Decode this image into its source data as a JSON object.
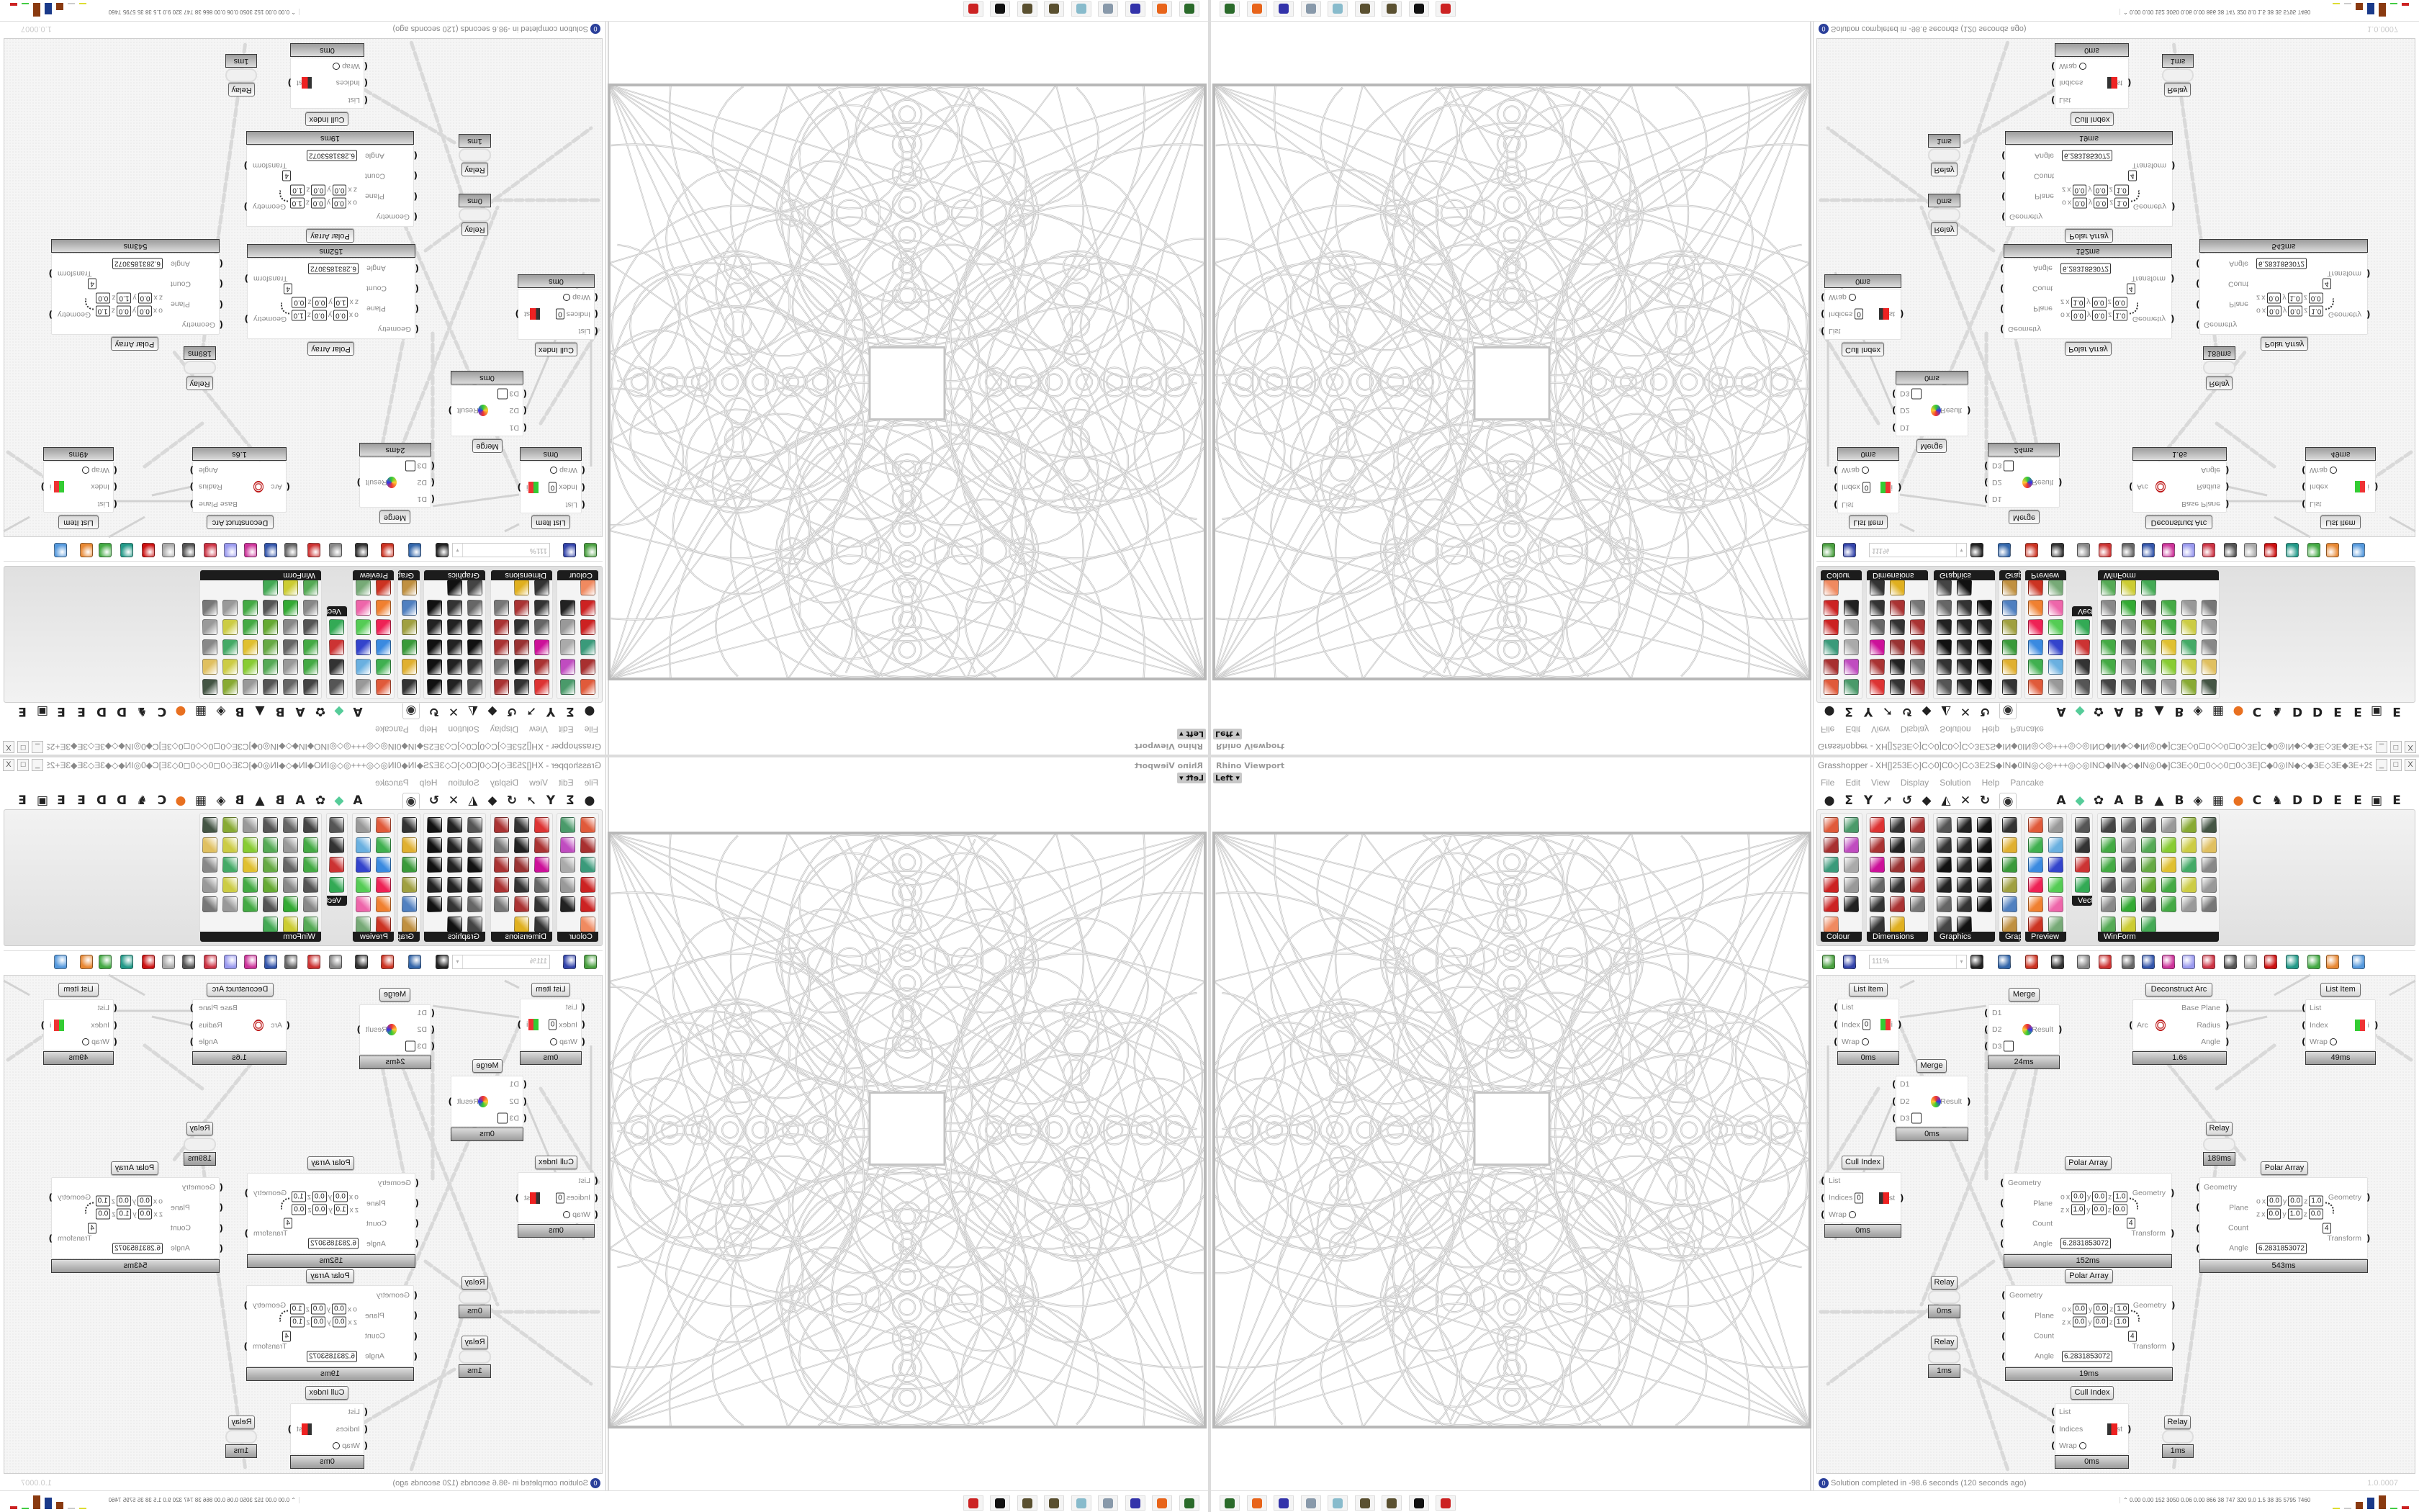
{
  "colors": {
    "canvas_bg": "#f5f5f5",
    "label_bar": "#1c1c1c",
    "geometry_stroke": "#c4c4c4",
    "status_icon": "#2a3f9a"
  },
  "viewport": {
    "title": "Rhino Viewport",
    "view_label": "Left",
    "dropdown_glyph": "▾"
  },
  "gh": {
    "title": "Grasshopper - XH[]253E◇]C◇0]C0◇]C◇3E2S◆IN◆0IN◎◇◎+++◎◇◎INO◆IN◆◇◆IN◎0◆]C3E◇0◻0◇◇0◻0◇3E]C◆0◎IN◆◇◆3E◇3E◆3E+2S◆3E◇3E◆◇◆◇]C3E◆◇]C",
    "window_buttons": [
      "_",
      "□",
      "X"
    ],
    "menu": [
      "File",
      "Edit",
      "View",
      "Display",
      "Solution",
      "Help",
      "Pancake"
    ],
    "tabs": [
      {
        "glyph": "●",
        "icon": "params-hexagon-icon"
      },
      {
        "glyph": "Σ",
        "icon": "maths-sigma-icon"
      },
      {
        "glyph": "Y",
        "icon": "sets-branch-icon"
      },
      {
        "glyph": "➚",
        "icon": "vector-arrow-icon"
      },
      {
        "glyph": "↺",
        "icon": "curve-icon"
      },
      {
        "glyph": "◆",
        "icon": "surface-icon"
      },
      {
        "glyph": "◭",
        "icon": "mesh-icon"
      },
      {
        "glyph": "✕",
        "icon": "intersect-icon"
      },
      {
        "glyph": "↻",
        "icon": "transform-icon"
      },
      {
        "glyph": "◉",
        "icon": "display-eye-icon"
      },
      {
        "glyph": "A",
        "icon": "plugin-a-icon"
      },
      {
        "glyph": "◆",
        "icon": "green-gem-icon"
      },
      {
        "glyph": "✿",
        "icon": "flower-icon"
      },
      {
        "glyph": "A",
        "icon": "plugin-a2-icon"
      },
      {
        "glyph": "B",
        "icon": "plugin-b-icon"
      },
      {
        "glyph": "▲",
        "icon": "mountain-icon"
      },
      {
        "glyph": "B",
        "icon": "plugin-b2-icon"
      },
      {
        "glyph": "◈",
        "icon": "shield-icon"
      },
      {
        "glyph": "▦",
        "icon": "grid-icon"
      },
      {
        "glyph": "●",
        "icon": "orange-circle-icon"
      },
      {
        "glyph": "C",
        "icon": "plugin-c-icon"
      },
      {
        "glyph": "♞",
        "icon": "rooster-icon"
      },
      {
        "glyph": "D",
        "icon": "plugin-d-icon"
      },
      {
        "glyph": "D",
        "icon": "plugin-d2-icon"
      },
      {
        "glyph": "E",
        "icon": "plugin-e-icon"
      },
      {
        "glyph": "E",
        "icon": "plugin-e2-icon"
      },
      {
        "glyph": "▣",
        "icon": "dotted-square-icon"
      },
      {
        "glyph": "E",
        "icon": "plugin-e3-icon"
      }
    ],
    "palette": [
      {
        "label": "Colour",
        "icons": [
          "#e05a3a",
          "#4a9a6a",
          "#a83030",
          "#c04cc0",
          "#3a9a7a",
          "#aaaaaa",
          "#cc2222",
          "#999999",
          "#cc2222",
          "#222222",
          "#f08a60"
        ]
      },
      {
        "label": "Dimensions",
        "icons": [
          "#dd3333",
          "#333333",
          "#aa3333",
          "#aa3333",
          "#222222",
          "#777777",
          "#cc1199",
          "#993333",
          "#aa3333",
          "#666666",
          "#333333",
          "#aa3333",
          "#333333",
          "#aa3333",
          "#777777",
          "#333333",
          "#e0b020"
        ]
      },
      {
        "label": "Graphics",
        "icons": [
          "#555555",
          "#222222",
          "#111111",
          "#333333",
          "#222222",
          "#111111",
          "#111111",
          "#222222",
          "#111111",
          "#222222",
          "#222222",
          "#222222",
          "#666666",
          "#333333",
          "#111111",
          "#444444",
          "#111111"
        ]
      },
      {
        "label": "Grap..",
        "icons": [
          "#333333",
          "#e0b030",
          "#3a9a3a",
          "#a0a040",
          "#5080c0",
          "#c09040"
        ]
      },
      {
        "label": "Preview",
        "icons": [
          "#e05a3a",
          "#999999",
          "#40b050",
          "#6ab0e0",
          "#3a8ae0",
          "#3344cc",
          "#ee2255",
          "#55cc55",
          "#f08030",
          "#ee66aa",
          "#cc3322",
          "#77aa77"
        ]
      },
      {
        "label": "Vect.",
        "icons": [
          "#555555",
          "#333333",
          "#cc3333",
          "#33aa55"
        ]
      },
      {
        "label": "WinForm",
        "icons": [
          "#444444",
          "#666666",
          "#555555",
          "#999999",
          "#88aa33",
          "#445544",
          "#44aa44",
          "#999999",
          "#55aa55",
          "#88cc33",
          "#cccc44",
          "#e0c060",
          "#44aa44",
          "#666666",
          "#66aa44",
          "#e0c030",
          "#44aa66",
          "#888888",
          "#555555",
          "#888888",
          "#66aa33",
          "#44aa44",
          "#cccc44",
          "#999999",
          "#888888",
          "#33aa33",
          "#555555",
          "#44aa44",
          "#999999",
          "#777777",
          "#55aa55",
          "#cccc33",
          "#44aa55"
        ]
      }
    ],
    "toolbar": {
      "zoom": "111%",
      "zoom_dropdown": "▾",
      "icons": [
        {
          "name": "new-file-icon",
          "color": "#4aa040"
        },
        {
          "name": "save-icon",
          "color": "#3344aa"
        },
        {
          "name": "zoom-extents-icon",
          "color": "#222222"
        },
        {
          "name": "preview-eye-icon",
          "color": "#3366aa"
        },
        {
          "name": "sketch-pen-icon",
          "color": "#cc3322"
        },
        {
          "name": "bug-icon",
          "color": "#333333"
        },
        {
          "name": "at-sign-icon",
          "color": "#888888"
        },
        {
          "name": "gha-icon",
          "color": "#cc3333"
        },
        {
          "name": "picture-icon",
          "color": "#666666"
        },
        {
          "name": "search-s-icon",
          "color": "#3355aa"
        },
        {
          "name": "package-icon",
          "color": "#cc3399"
        },
        {
          "name": "bulb-icon",
          "color": "#9999ee"
        },
        {
          "name": "cross-wires-icon",
          "color": "#cc3344"
        },
        {
          "name": "pipe-icon",
          "color": "#555555"
        },
        {
          "name": "ring-icon",
          "color": "#aaaaaa"
        },
        {
          "name": "red-gem-icon",
          "color": "#cc1111"
        },
        {
          "name": "teal-shape-icon",
          "color": "#229988"
        },
        {
          "name": "green-shape-icon",
          "color": "#44aa44"
        },
        {
          "name": "orange-sphere-icon",
          "color": "#e88833"
        },
        {
          "name": "blue-sphere-icon",
          "color": "#5599dd"
        }
      ]
    },
    "components": [
      {
        "name": "List Item",
        "inputs": [
          {
            "label": "List"
          },
          {
            "label": "Index",
            "value": "0"
          },
          {
            "label": "Wrap",
            "toggle": true
          }
        ],
        "outputs": [
          {
            "label": "i"
          }
        ],
        "time": "0ms",
        "icon": "list-item-icon"
      },
      {
        "name": "Merge",
        "inputs": [
          {
            "label": "D1"
          },
          {
            "label": "D2"
          },
          {
            "label": "D3",
            "empty_box": true
          }
        ],
        "outputs": [
          {
            "label": "Result"
          }
        ],
        "time": "24ms",
        "icon": "merge-icon"
      },
      {
        "name": "Deconstruct Arc",
        "inputs": [
          {
            "label": "Arc"
          }
        ],
        "outputs": [
          {
            "label": "Base Plane"
          },
          {
            "label": "Radius"
          },
          {
            "label": "Angle"
          }
        ],
        "time": "1.6s",
        "icon": "arc-target-icon"
      },
      {
        "name": "List Item",
        "inputs": [
          {
            "label": "List"
          },
          {
            "label": "Index"
          },
          {
            "label": "Wrap",
            "toggle": true
          }
        ],
        "outputs": [
          {
            "label": "i"
          }
        ],
        "time": "49ms",
        "icon": "list-item-icon"
      },
      {
        "name": "Merge",
        "inputs": [
          {
            "label": "D1"
          },
          {
            "label": "D2"
          },
          {
            "label": "D3",
            "empty_box": true
          }
        ],
        "outputs": [
          {
            "label": "Result"
          }
        ],
        "time": "0ms",
        "icon": "merge-icon"
      },
      {
        "name": "Relay",
        "relay": true,
        "time": "189ms"
      },
      {
        "name": "Cull Index",
        "inputs": [
          {
            "label": "List"
          },
          {
            "label": "Indices",
            "value": "0"
          },
          {
            "label": "Wrap",
            "toggle": true
          }
        ],
        "outputs": [
          {
            "label": "List"
          }
        ],
        "time": "0ms",
        "icon": "cull-index-icon"
      },
      {
        "name": "Polar Array",
        "inputs": [
          {
            "label": "Geometry"
          },
          {
            "label": "Plane",
            "rows": [
              {
                "axis": "o",
                "coords": [
                  [
                    "x",
                    "0.0"
                  ],
                  [
                    "y",
                    "0.0"
                  ],
                  [
                    "z",
                    "1.0"
                  ]
                ]
              },
              {
                "axis": "z",
                "coords": [
                  [
                    "x",
                    "1.0"
                  ],
                  [
                    "y",
                    "0.0"
                  ],
                  [
                    "z",
                    "0.0"
                  ]
                ]
              }
            ]
          },
          {
            "label": "Count",
            "value": "4"
          },
          {
            "label": "Angle",
            "value": "6.2831853072"
          }
        ],
        "outputs": [
          {
            "label": "Geometry"
          },
          {
            "label": "Transform"
          }
        ],
        "time": "152ms",
        "icon": "polar-array-icon"
      },
      {
        "name": "Polar Array",
        "inputs": [
          {
            "label": "Geometry"
          },
          {
            "label": "Plane",
            "rows": [
              {
                "axis": "o",
                "coords": [
                  [
                    "x",
                    "0.0"
                  ],
                  [
                    "y",
                    "0.0"
                  ],
                  [
                    "z",
                    "1.0"
                  ]
                ]
              },
              {
                "axis": "z",
                "coords": [
                  [
                    "x",
                    "0.0"
                  ],
                  [
                    "y",
                    "1.0"
                  ],
                  [
                    "z",
                    "0.0"
                  ]
                ]
              }
            ]
          },
          {
            "label": "Count",
            "value": "4"
          },
          {
            "label": "Angle",
            "value": "6.2831853072"
          }
        ],
        "outputs": [
          {
            "label": "Geometry"
          },
          {
            "label": "Transform"
          }
        ],
        "time": "543ms",
        "icon": "polar-array-icon"
      },
      {
        "name": "Relay",
        "relay": true,
        "time": "0ms"
      },
      {
        "name": "Relay",
        "relay": true,
        "time": "1ms"
      },
      {
        "name": "Polar Array",
        "inputs": [
          {
            "label": "Geometry"
          },
          {
            "label": "Plane",
            "rows": [
              {
                "axis": "o",
                "coords": [
                  [
                    "x",
                    "0.0"
                  ],
                  [
                    "y",
                    "0.0"
                  ],
                  [
                    "z",
                    "1.0"
                  ]
                ]
              },
              {
                "axis": "z",
                "coords": [
                  [
                    "x",
                    "0.0"
                  ],
                  [
                    "y",
                    "0.0"
                  ],
                  [
                    "z",
                    "1.0"
                  ]
                ]
              }
            ]
          },
          {
            "label": "Count",
            "value": "4"
          },
          {
            "label": "Angle",
            "value": "6.2831853072"
          }
        ],
        "outputs": [
          {
            "label": "Geometry"
          },
          {
            "label": "Transform"
          }
        ],
        "time": "19ms",
        "icon": "polar-array-icon"
      },
      {
        "name": "Cull Index",
        "inputs": [
          {
            "label": "List"
          },
          {
            "label": "Indices"
          },
          {
            "label": "Wrap",
            "toggle": true
          }
        ],
        "outputs": [
          {
            "label": "List"
          }
        ],
        "time": "0ms",
        "icon": "cull-index-icon"
      },
      {
        "name": "Relay",
        "relay": true,
        "time": "1ms"
      }
    ],
    "status": {
      "message": "Solution completed in -98.6 seconds (120 seconds ago)",
      "icon_glyph": "0",
      "version": "1.0.0007"
    }
  },
  "taskbar": {
    "icons": [
      {
        "name": "terminal-icon",
        "color": "#2a6a2a"
      },
      {
        "name": "firefox-icon",
        "color": "#e8641a"
      },
      {
        "name": "floppy-64-icon",
        "color": "#3333aa"
      },
      {
        "name": "scroll-icon",
        "color": "#8899aa"
      },
      {
        "name": "notepad-icon",
        "color": "#88bbcc"
      },
      {
        "name": "pinecone-icon",
        "color": "#5a5030"
      },
      {
        "name": "pinecone-icon-2",
        "color": "#5a5030"
      },
      {
        "name": "rhino-icon",
        "color": "#111111"
      },
      {
        "name": "red-gear-icon",
        "color": "#cc2222"
      }
    ]
  },
  "stats": {
    "arrow": "⌃",
    "text": "0.00 0.00 152 3050 0.06 0.00 866 38 747 320 9.0 1.5 38 35 5795 7460",
    "bars": [
      {
        "color": "#dddd33",
        "level": 0.05
      },
      {
        "color": "#cccccc",
        "level": 0.05
      },
      {
        "color": "#8a3a10",
        "level": 0.5
      },
      {
        "color": "#1a3a8a",
        "level": 0.8
      },
      {
        "color": "#8a3a10",
        "level": 0.95
      },
      {
        "color": "#44cc44",
        "level": 0.05
      },
      {
        "color": "#cc2222",
        "level": 0.2
      }
    ]
  }
}
